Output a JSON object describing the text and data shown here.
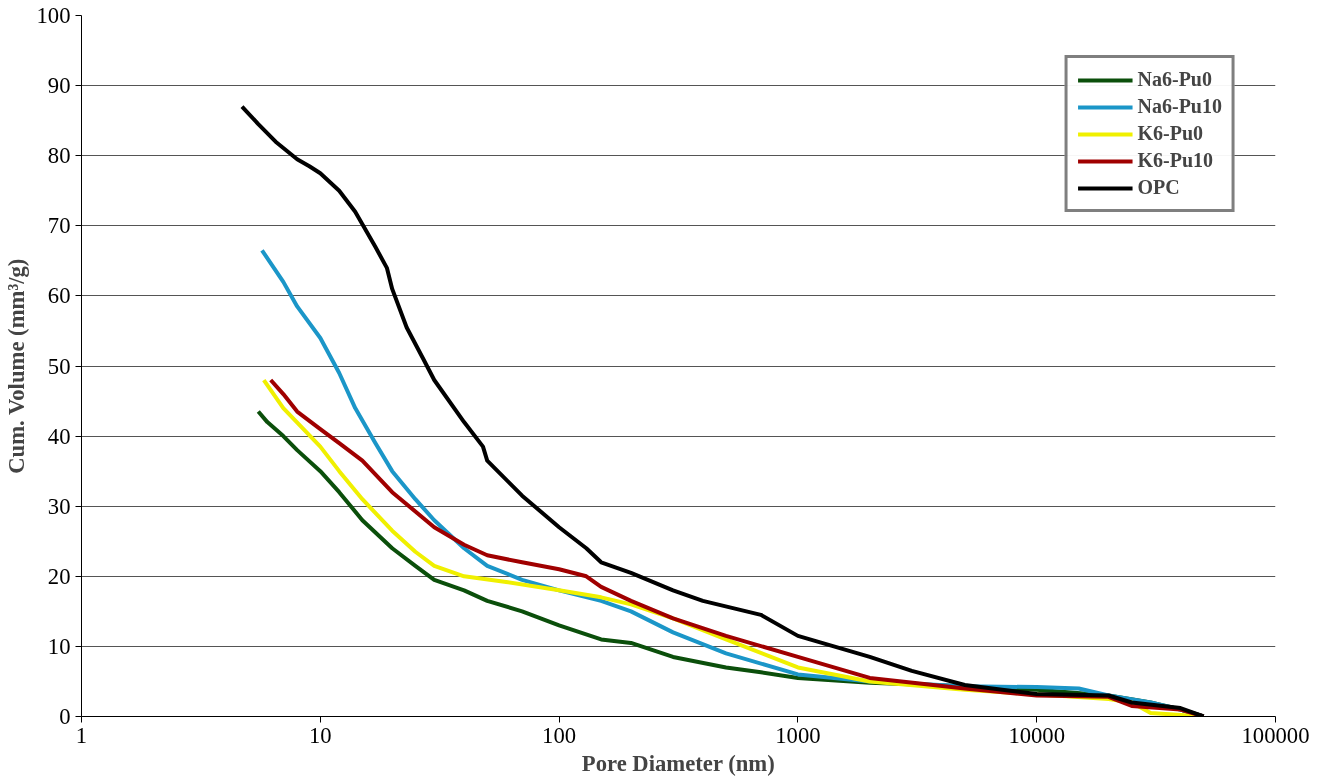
{
  "chart_data": {
    "type": "line",
    "xlabel": "Pore Diameter (nm)",
    "ylabel": "Cum. Volume (mm³/g)",
    "log": "x",
    "xlim": [
      1,
      100000
    ],
    "xticks": [
      1,
      10,
      100,
      1000,
      10000,
      100000
    ],
    "ylim": [
      0,
      100
    ],
    "yticks": [
      0,
      10,
      20,
      30,
      40,
      50,
      60,
      70,
      80,
      90,
      100
    ],
    "grid": "y",
    "legend": "top right",
    "marker": "none",
    "line_style": "solid",
    "series": [
      {
        "name": "Na6-Pu0",
        "color": "#0b4f0b",
        "x": [
          5.5,
          6,
          7,
          8,
          10,
          12,
          15,
          20,
          25,
          30,
          40,
          50,
          70,
          100,
          150,
          200,
          300,
          500,
          700,
          1000,
          2000,
          5000,
          10000,
          20000,
          30000,
          40000,
          50000
        ],
        "values": [
          43.5,
          42,
          40,
          38,
          35,
          32,
          28,
          24,
          21.5,
          19.5,
          18,
          16.5,
          15,
          13,
          11,
          10.5,
          8.5,
          7,
          6.3,
          5.5,
          4.8,
          4.3,
          3.8,
          3,
          2,
          1,
          0
        ]
      },
      {
        "name": "Na6-Pu10",
        "color": "#1b96c8",
        "x": [
          5.7,
          7,
          8,
          10,
          12,
          14,
          17,
          20,
          25,
          30,
          40,
          50,
          70,
          100,
          150,
          200,
          300,
          500,
          1000,
          2000,
          5000,
          10000,
          15000,
          20000,
          30000,
          40000,
          50000
        ],
        "values": [
          66.5,
          62,
          58.5,
          54,
          49,
          44,
          39,
          35,
          31,
          28,
          24,
          21.5,
          19.5,
          18,
          16.5,
          15,
          12,
          9,
          6,
          5,
          4.3,
          4.2,
          4,
          3,
          2,
          1,
          0
        ]
      },
      {
        "name": "K6-Pu0",
        "color": "#f0f000",
        "x": [
          5.8,
          7,
          10,
          12,
          15,
          20,
          25,
          30,
          40,
          60,
          100,
          150,
          200,
          300,
          500,
          1000,
          2000,
          5000,
          20000,
          25000,
          30000,
          50000
        ],
        "values": [
          48,
          44,
          38.5,
          35,
          31,
          26.5,
          23.5,
          21.5,
          20,
          19.2,
          18,
          17,
          16,
          14,
          11,
          7,
          5,
          3.8,
          2.5,
          2,
          0.5,
          0
        ]
      },
      {
        "name": "K6-Pu10",
        "color": "#a00000",
        "x": [
          6.2,
          7,
          8,
          10,
          12,
          15,
          20,
          30,
          40,
          50,
          70,
          100,
          130,
          150,
          200,
          300,
          500,
          1000,
          2000,
          5000,
          10000,
          20000,
          25000,
          40000,
          50000
        ],
        "values": [
          48,
          46,
          43.5,
          41,
          39,
          36.5,
          32,
          27,
          24.5,
          23,
          22,
          21,
          20,
          18.5,
          16.5,
          14,
          11.5,
          8.5,
          5.5,
          4,
          3,
          2.8,
          1.5,
          1,
          0
        ]
      },
      {
        "name": "OPC",
        "color": "#000000",
        "x": [
          4.7,
          5.5,
          6.5,
          8,
          9,
          10,
          12,
          14,
          17,
          19,
          20,
          23,
          27,
          30,
          40,
          48,
          50,
          70,
          100,
          130,
          150,
          200,
          300,
          400,
          700,
          1000,
          2000,
          3000,
          5000,
          10000,
          20000,
          25000,
          40000,
          50000
        ],
        "values": [
          87,
          84.5,
          82,
          79.5,
          78.5,
          77.5,
          75,
          72,
          67,
          64,
          61,
          55.5,
          51,
          48,
          42,
          38.5,
          36.5,
          31.5,
          27,
          24,
          22,
          20.5,
          18,
          16.5,
          14.5,
          11.5,
          8.5,
          6.5,
          4.5,
          3.2,
          3,
          2,
          1.2,
          0
        ]
      }
    ]
  }
}
